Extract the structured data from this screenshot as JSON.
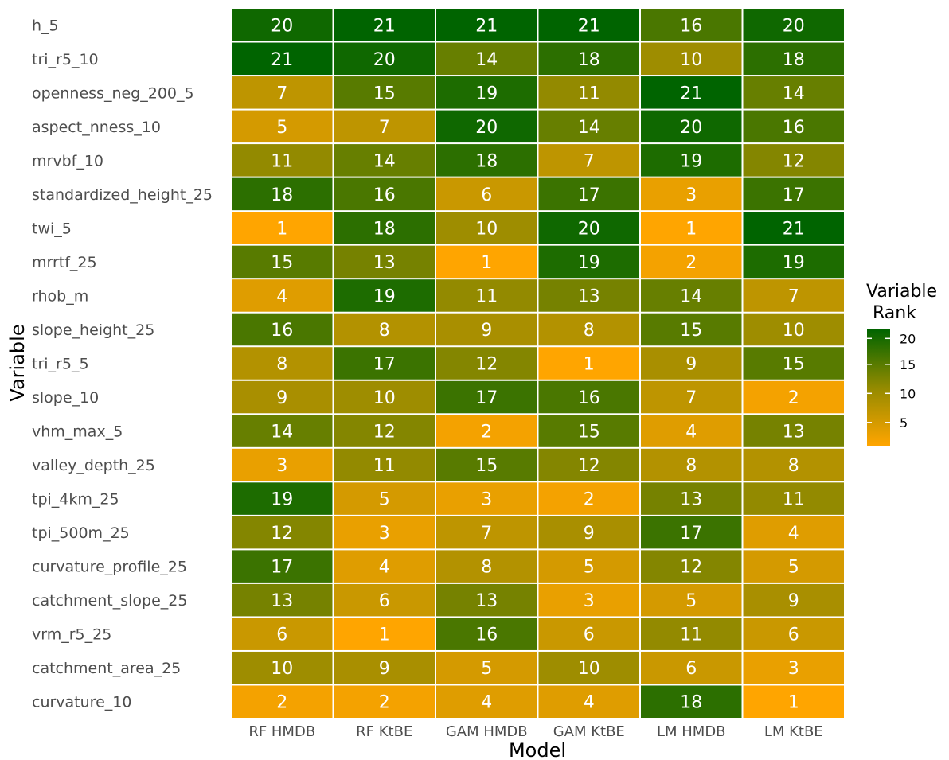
{
  "chart_data": {
    "type": "heatmap",
    "xlabel": "Model",
    "ylabel": "Variable",
    "columns": [
      "RF HMDB",
      "RF KtBE",
      "GAM HMDB",
      "GAM KtBE",
      "LM HMDB",
      "LM KtBE"
    ],
    "rows": [
      "h_5",
      "tri_r5_10",
      "openness_neg_200_5",
      "aspect_nness_10",
      "mrvbf_10",
      "standardized_height_25",
      "twi_5",
      "mrrtf_25",
      "rhob_m",
      "slope_height_25",
      "tri_r5_5",
      "slope_10",
      "vhm_max_5",
      "valley_depth_25",
      "tpi_4km_25",
      "tpi_500m_25",
      "curvature_profile_25",
      "catchment_slope_25",
      "vrm_r5_25",
      "catchment_area_25",
      "curvature_10"
    ],
    "values": [
      [
        20,
        21,
        21,
        21,
        16,
        20
      ],
      [
        21,
        20,
        14,
        18,
        10,
        18
      ],
      [
        7,
        15,
        19,
        11,
        21,
        14
      ],
      [
        5,
        7,
        20,
        14,
        20,
        16
      ],
      [
        11,
        14,
        18,
        7,
        19,
        12
      ],
      [
        18,
        16,
        6,
        17,
        3,
        17
      ],
      [
        1,
        18,
        10,
        20,
        1,
        21
      ],
      [
        15,
        13,
        1,
        19,
        2,
        19
      ],
      [
        4,
        19,
        11,
        13,
        14,
        7
      ],
      [
        16,
        8,
        9,
        8,
        15,
        10
      ],
      [
        8,
        17,
        12,
        1,
        9,
        15
      ],
      [
        9,
        10,
        17,
        16,
        7,
        2
      ],
      [
        14,
        12,
        2,
        15,
        4,
        13
      ],
      [
        3,
        11,
        15,
        12,
        8,
        8
      ],
      [
        19,
        5,
        3,
        2,
        13,
        11
      ],
      [
        12,
        3,
        7,
        9,
        17,
        4
      ],
      [
        17,
        4,
        8,
        5,
        12,
        5
      ],
      [
        13,
        6,
        13,
        3,
        5,
        9
      ],
      [
        6,
        1,
        16,
        6,
        11,
        6
      ],
      [
        10,
        9,
        5,
        10,
        6,
        3
      ],
      [
        2,
        2,
        4,
        4,
        18,
        1
      ]
    ],
    "color_scale": {
      "low": "#ffa500",
      "high": "#006400",
      "min": 1,
      "max": 21
    },
    "legend": {
      "title_line1": "Variable",
      "title_line2": "Rank",
      "ticks": [
        5,
        10,
        15,
        20
      ],
      "placement": "right"
    }
  }
}
